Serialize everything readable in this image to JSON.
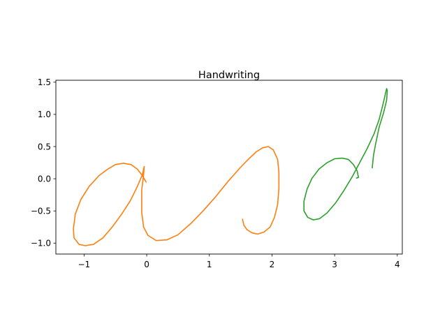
{
  "chart_data": {
    "type": "line",
    "title": "Handwriting",
    "xlabel": "",
    "ylabel": "",
    "xlim": [
      -1.45,
      4.08
    ],
    "ylim": [
      -1.17,
      1.53
    ],
    "xticks": [
      -1,
      0,
      1,
      2,
      3,
      4
    ],
    "yticks": [
      -1.0,
      -0.5,
      0.0,
      0.5,
      1.0,
      1.5
    ],
    "xtick_labels": [
      "−1",
      "0",
      "1",
      "2",
      "3",
      "4"
    ],
    "ytick_labels": [
      "−1.0",
      "−0.5",
      "0.0",
      "0.5",
      "1.0",
      "1.5"
    ],
    "grid": false,
    "legend": false,
    "series": [
      {
        "color": "#ff7f0e",
        "points": [
          [
            -0.01,
            -0.05
          ],
          [
            -0.07,
            0.05
          ],
          [
            -0.15,
            0.15
          ],
          [
            -0.25,
            0.22
          ],
          [
            -0.37,
            0.24
          ],
          [
            -0.5,
            0.22
          ],
          [
            -0.62,
            0.15
          ],
          [
            -0.76,
            0.05
          ],
          [
            -0.92,
            -0.12
          ],
          [
            -1.05,
            -0.32
          ],
          [
            -1.14,
            -0.55
          ],
          [
            -1.17,
            -0.78
          ],
          [
            -1.16,
            -0.92
          ],
          [
            -1.08,
            -1.02
          ],
          [
            -0.98,
            -1.04
          ],
          [
            -0.85,
            -1.02
          ],
          [
            -0.7,
            -0.92
          ],
          [
            -0.55,
            -0.75
          ],
          [
            -0.4,
            -0.55
          ],
          [
            -0.26,
            -0.34
          ],
          [
            -0.15,
            -0.12
          ],
          [
            -0.07,
            0.06
          ],
          [
            -0.04,
            0.19
          ],
          [
            -0.05,
            0.06
          ],
          [
            -0.08,
            -0.18
          ],
          [
            -0.08,
            -0.52
          ],
          [
            -0.05,
            -0.75
          ],
          [
            0.02,
            -0.88
          ],
          [
            0.15,
            -0.96
          ],
          [
            0.32,
            -0.95
          ],
          [
            0.5,
            -0.87
          ],
          [
            0.7,
            -0.7
          ],
          [
            0.9,
            -0.5
          ],
          [
            1.1,
            -0.28
          ],
          [
            1.3,
            -0.04
          ],
          [
            1.5,
            0.18
          ],
          [
            1.62,
            0.3
          ],
          [
            1.75,
            0.42
          ],
          [
            1.85,
            0.48
          ],
          [
            1.94,
            0.5
          ],
          [
            2.02,
            0.45
          ],
          [
            2.09,
            0.3
          ],
          [
            2.11,
            0.1
          ],
          [
            2.11,
            -0.15
          ],
          [
            2.09,
            -0.4
          ],
          [
            2.04,
            -0.6
          ],
          [
            1.97,
            -0.75
          ],
          [
            1.87,
            -0.83
          ],
          [
            1.77,
            -0.86
          ],
          [
            1.68,
            -0.84
          ],
          [
            1.6,
            -0.79
          ],
          [
            1.55,
            -0.72
          ],
          [
            1.53,
            -0.63
          ]
        ]
      },
      {
        "color": "#2ca02c",
        "points": [
          [
            3.35,
            0.01
          ],
          [
            3.38,
            0.02
          ],
          [
            3.36,
            0.12
          ],
          [
            3.3,
            0.22
          ],
          [
            3.22,
            0.3
          ],
          [
            3.12,
            0.32
          ],
          [
            3.0,
            0.31
          ],
          [
            2.88,
            0.25
          ],
          [
            2.75,
            0.15
          ],
          [
            2.64,
            0.01
          ],
          [
            2.56,
            -0.16
          ],
          [
            2.51,
            -0.35
          ],
          [
            2.51,
            -0.5
          ],
          [
            2.57,
            -0.6
          ],
          [
            2.66,
            -0.64
          ],
          [
            2.76,
            -0.62
          ],
          [
            2.88,
            -0.53
          ],
          [
            3.02,
            -0.37
          ],
          [
            3.15,
            -0.18
          ],
          [
            3.28,
            0.03
          ],
          [
            3.4,
            0.25
          ],
          [
            3.52,
            0.47
          ],
          [
            3.63,
            0.7
          ],
          [
            3.71,
            0.92
          ],
          [
            3.77,
            1.15
          ],
          [
            3.81,
            1.32
          ],
          [
            3.83,
            1.4
          ],
          [
            3.84,
            1.37
          ],
          [
            3.83,
            1.22
          ],
          [
            3.78,
            1.02
          ],
          [
            3.71,
            0.8
          ],
          [
            3.65,
            0.52
          ],
          [
            3.62,
            0.36
          ],
          [
            3.6,
            0.17
          ]
        ]
      }
    ]
  }
}
